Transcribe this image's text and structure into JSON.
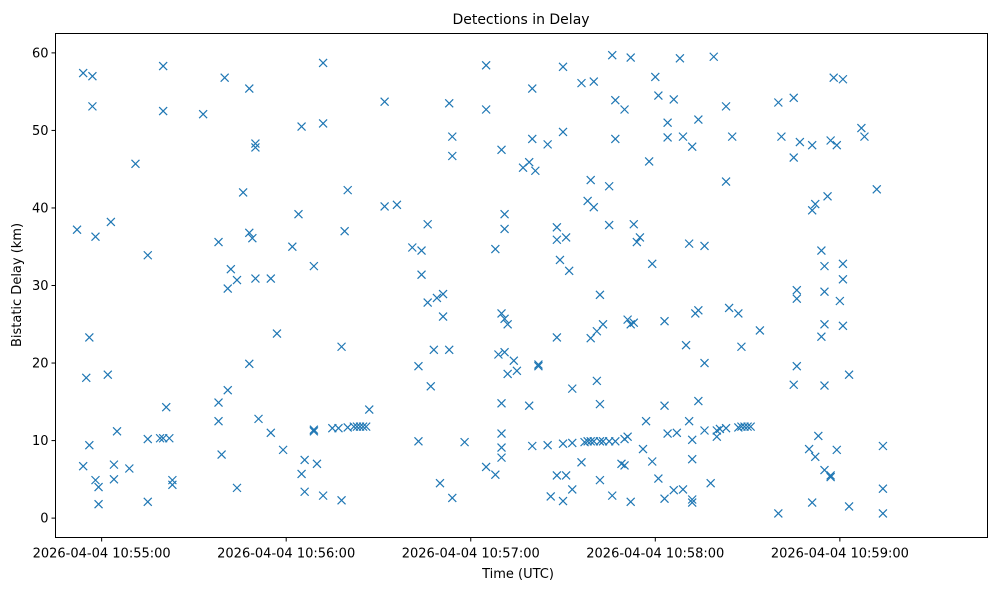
{
  "chart_data": {
    "type": "scatter",
    "title": "Detections in Delay",
    "xlabel": "Time (UTC)",
    "ylabel": "Bistatic Delay (km)",
    "xlim": [
      "2026-04-04 10:54:45",
      "2026-04-04 10:59:48"
    ],
    "ylim": [
      -2.5,
      62.5
    ],
    "x_ticks": [
      "2026-04-04 10:55:00",
      "2026-04-04 10:56:00",
      "2026-04-04 10:57:00",
      "2026-04-04 10:58:00",
      "2026-04-04 10:59:00"
    ],
    "y_ticks": [
      0,
      10,
      20,
      30,
      40,
      50,
      60
    ],
    "grid": false,
    "marker": "x",
    "color": "#1f77b4",
    "points": [
      [
        "2026-04-04 10:54:54",
        57.4
      ],
      [
        "2026-04-04 10:54:57",
        57.0
      ],
      [
        "2026-04-04 10:54:57",
        53.1
      ],
      [
        "2026-04-04 10:54:52",
        37.2
      ],
      [
        "2026-04-04 10:54:58",
        36.3
      ],
      [
        "2026-04-04 10:55:03",
        38.2
      ],
      [
        "2026-04-04 10:54:56",
        23.3
      ],
      [
        "2026-04-04 10:54:55",
        18.1
      ],
      [
        "2026-04-04 10:55:02",
        18.5
      ],
      [
        "2026-04-04 10:55:05",
        11.2
      ],
      [
        "2026-04-04 10:54:56",
        9.4
      ],
      [
        "2026-04-04 10:54:54",
        6.7
      ],
      [
        "2026-04-04 10:54:58",
        4.9
      ],
      [
        "2026-04-04 10:54:59",
        4.0
      ],
      [
        "2026-04-04 10:54:59",
        1.8
      ],
      [
        "2026-04-04 10:55:04",
        6.9
      ],
      [
        "2026-04-04 10:55:04",
        5.0
      ],
      [
        "2026-04-04 10:55:09",
        6.4
      ],
      [
        "2026-04-04 10:55:11",
        45.7
      ],
      [
        "2026-04-04 10:55:15",
        33.9
      ],
      [
        "2026-04-04 10:55:15",
        10.2
      ],
      [
        "2026-04-04 10:55:15",
        2.1
      ],
      [
        "2026-04-04 10:55:19",
        10.3
      ],
      [
        "2026-04-04 10:55:20",
        10.3
      ],
      [
        "2026-04-04 10:55:22",
        10.3
      ],
      [
        "2026-04-04 10:55:21",
        14.3
      ],
      [
        "2026-04-04 10:55:20",
        58.3
      ],
      [
        "2026-04-04 10:55:20",
        52.5
      ],
      [
        "2026-04-04 10:55:23",
        4.9
      ],
      [
        "2026-04-04 10:55:23",
        4.3
      ],
      [
        "2026-04-04 10:55:33",
        52.1
      ],
      [
        "2026-04-04 10:55:38",
        35.6
      ],
      [
        "2026-04-04 10:55:38",
        14.9
      ],
      [
        "2026-04-04 10:55:38",
        12.5
      ],
      [
        "2026-04-04 10:55:39",
        8.2
      ],
      [
        "2026-04-04 10:55:40",
        56.8
      ],
      [
        "2026-04-04 10:55:41",
        29.6
      ],
      [
        "2026-04-04 10:55:41",
        16.5
      ],
      [
        "2026-04-04 10:55:42",
        32.1
      ],
      [
        "2026-04-04 10:55:44",
        30.7
      ],
      [
        "2026-04-04 10:55:44",
        3.9
      ],
      [
        "2026-04-04 10:55:46",
        42.0
      ],
      [
        "2026-04-04 10:55:48",
        55.4
      ],
      [
        "2026-04-04 10:55:48",
        36.8
      ],
      [
        "2026-04-04 10:55:49",
        36.1
      ],
      [
        "2026-04-04 10:55:48",
        19.9
      ],
      [
        "2026-04-04 10:55:50",
        48.3
      ],
      [
        "2026-04-04 10:55:50",
        47.8
      ],
      [
        "2026-04-04 10:55:50",
        30.9
      ],
      [
        "2026-04-04 10:55:51",
        12.8
      ],
      [
        "2026-04-04 10:55:55",
        30.9
      ],
      [
        "2026-04-04 10:55:55",
        11.0
      ],
      [
        "2026-04-04 10:55:57",
        23.8
      ],
      [
        "2026-04-04 10:55:59",
        8.8
      ],
      [
        "2026-04-04 10:56:02",
        35.0
      ],
      [
        "2026-04-04 10:56:04",
        39.2
      ],
      [
        "2026-04-04 10:56:05",
        50.5
      ],
      [
        "2026-04-04 10:56:05",
        5.7
      ],
      [
        "2026-04-04 10:56:06",
        7.5
      ],
      [
        "2026-04-04 10:56:06",
        3.4
      ],
      [
        "2026-04-04 10:56:09",
        32.5
      ],
      [
        "2026-04-04 10:56:09",
        11.4
      ],
      [
        "2026-04-04 10:56:09",
        11.2
      ],
      [
        "2026-04-04 10:56:10",
        7.0
      ],
      [
        "2026-04-04 10:56:12",
        58.7
      ],
      [
        "2026-04-04 10:56:12",
        50.9
      ],
      [
        "2026-04-04 10:56:12",
        2.9
      ],
      [
        "2026-04-04 10:56:15",
        11.6
      ],
      [
        "2026-04-04 10:56:17",
        11.6
      ],
      [
        "2026-04-04 10:56:18",
        22.1
      ],
      [
        "2026-04-04 10:56:18",
        2.3
      ],
      [
        "2026-04-04 10:56:19",
        37.0
      ],
      [
        "2026-04-04 10:56:20",
        42.3
      ],
      [
        "2026-04-04 10:56:20",
        11.7
      ],
      [
        "2026-04-04 10:56:22",
        11.8
      ],
      [
        "2026-04-04 10:56:23",
        11.8
      ],
      [
        "2026-04-04 10:56:24",
        11.8
      ],
      [
        "2026-04-04 10:56:25",
        11.8
      ],
      [
        "2026-04-04 10:56:26",
        11.8
      ],
      [
        "2026-04-04 10:56:27",
        14.0
      ],
      [
        "2026-04-04 10:56:32",
        53.7
      ],
      [
        "2026-04-04 10:56:32",
        40.2
      ],
      [
        "2026-04-04 10:56:36",
        40.4
      ],
      [
        "2026-04-04 10:56:41",
        34.9
      ],
      [
        "2026-04-04 10:56:44",
        34.5
      ],
      [
        "2026-04-04 10:56:44",
        31.4
      ],
      [
        "2026-04-04 10:56:43",
        19.6
      ],
      [
        "2026-04-04 10:56:43",
        9.9
      ],
      [
        "2026-04-04 10:56:46",
        37.9
      ],
      [
        "2026-04-04 10:56:46",
        27.8
      ],
      [
        "2026-04-04 10:56:47",
        17.0
      ],
      [
        "2026-04-04 10:56:48",
        21.7
      ],
      [
        "2026-04-04 10:56:49",
        28.4
      ],
      [
        "2026-04-04 10:56:51",
        28.9
      ],
      [
        "2026-04-04 10:56:51",
        26.0
      ],
      [
        "2026-04-04 10:56:50",
        4.5
      ],
      [
        "2026-04-04 10:56:53",
        53.5
      ],
      [
        "2026-04-04 10:56:54",
        49.2
      ],
      [
        "2026-04-04 10:56:54",
        46.7
      ],
      [
        "2026-04-04 10:56:53",
        21.7
      ],
      [
        "2026-04-04 10:56:54",
        2.6
      ],
      [
        "2026-04-04 10:56:58",
        9.8
      ],
      [
        "2026-04-04 10:57:05",
        58.4
      ],
      [
        "2026-04-04 10:57:05",
        52.7
      ],
      [
        "2026-04-04 10:57:05",
        6.6
      ],
      [
        "2026-04-04 10:57:08",
        34.7
      ],
      [
        "2026-04-04 10:57:09",
        21.1
      ],
      [
        "2026-04-04 10:57:08",
        5.6
      ],
      [
        "2026-04-04 10:57:10",
        47.5
      ],
      [
        "2026-04-04 10:57:11",
        39.2
      ],
      [
        "2026-04-04 10:57:11",
        37.3
      ],
      [
        "2026-04-04 10:57:10",
        26.4
      ],
      [
        "2026-04-04 10:57:11",
        25.7
      ],
      [
        "2026-04-04 10:57:12",
        25.0
      ],
      [
        "2026-04-04 10:57:11",
        21.4
      ],
      [
        "2026-04-04 10:57:12",
        18.6
      ],
      [
        "2026-04-04 10:57:10",
        14.8
      ],
      [
        "2026-04-04 10:57:10",
        10.9
      ],
      [
        "2026-04-04 10:57:10",
        9.1
      ],
      [
        "2026-04-04 10:57:10",
        7.8
      ],
      [
        "2026-04-04 10:57:14",
        20.3
      ],
      [
        "2026-04-04 10:57:15",
        19.0
      ],
      [
        "2026-04-04 10:57:17",
        45.2
      ],
      [
        "2026-04-04 10:57:19",
        45.9
      ],
      [
        "2026-04-04 10:57:20",
        48.9
      ],
      [
        "2026-04-04 10:57:20",
        55.4
      ],
      [
        "2026-04-04 10:57:21",
        44.8
      ],
      [
        "2026-04-04 10:57:19",
        14.5
      ],
      [
        "2026-04-04 10:57:20",
        9.3
      ],
      [
        "2026-04-04 10:57:22",
        19.8
      ],
      [
        "2026-04-04 10:57:22",
        19.6
      ],
      [
        "2026-04-04 10:57:25",
        48.2
      ],
      [
        "2026-04-04 10:57:25",
        9.4
      ],
      [
        "2026-04-04 10:57:26",
        2.8
      ],
      [
        "2026-04-04 10:57:28",
        37.5
      ],
      [
        "2026-04-04 10:57:28",
        35.9
      ],
      [
        "2026-04-04 10:57:28",
        23.3
      ],
      [
        "2026-04-04 10:57:28",
        5.5
      ],
      [
        "2026-04-04 10:57:29",
        33.3
      ],
      [
        "2026-04-04 10:57:30",
        58.2
      ],
      [
        "2026-04-04 10:57:30",
        49.8
      ],
      [
        "2026-04-04 10:57:30",
        9.6
      ],
      [
        "2026-04-04 10:57:31",
        36.2
      ],
      [
        "2026-04-04 10:57:31",
        5.5
      ],
      [
        "2026-04-04 10:57:30",
        2.2
      ],
      [
        "2026-04-04 10:57:32",
        31.9
      ],
      [
        "2026-04-04 10:57:33",
        16.7
      ],
      [
        "2026-04-04 10:57:33",
        9.7
      ],
      [
        "2026-04-04 10:57:33",
        3.7
      ],
      [
        "2026-04-04 10:57:36",
        56.1
      ],
      [
        "2026-04-04 10:57:36",
        7.2
      ],
      [
        "2026-04-04 10:57:37",
        9.8
      ],
      [
        "2026-04-04 10:57:38",
        9.9
      ],
      [
        "2026-04-04 10:57:38",
        40.9
      ],
      [
        "2026-04-04 10:57:39",
        43.6
      ],
      [
        "2026-04-04 10:57:39",
        23.2
      ],
      [
        "2026-04-04 10:57:40",
        56.3
      ],
      [
        "2026-04-04 10:57:40",
        40.1
      ],
      [
        "2026-04-04 10:57:39",
        9.9
      ],
      [
        "2026-04-04 10:57:40",
        9.9
      ],
      [
        "2026-04-04 10:57:41",
        24.1
      ],
      [
        "2026-04-04 10:57:41",
        17.7
      ],
      [
        "2026-04-04 10:57:42",
        28.8
      ],
      [
        "2026-04-04 10:57:42",
        14.7
      ],
      [
        "2026-04-04 10:57:42",
        4.9
      ],
      [
        "2026-04-04 10:57:42",
        9.9
      ],
      [
        "2026-04-04 10:57:43",
        25.0
      ],
      [
        "2026-04-04 10:57:43",
        9.9
      ],
      [
        "2026-04-04 10:57:45",
        42.8
      ],
      [
        "2026-04-04 10:57:45",
        37.8
      ],
      [
        "2026-04-04 10:57:45",
        9.9
      ],
      [
        "2026-04-04 10:57:46",
        2.9
      ],
      [
        "2026-04-04 10:57:46",
        59.7
      ],
      [
        "2026-04-04 10:57:47",
        53.9
      ],
      [
        "2026-04-04 10:57:47",
        48.9
      ],
      [
        "2026-04-04 10:57:47",
        9.9
      ],
      [
        "2026-04-04 10:57:49",
        7.0
      ],
      [
        "2026-04-04 10:57:50",
        52.7
      ],
      [
        "2026-04-04 10:57:50",
        10.2
      ],
      [
        "2026-04-04 10:57:50",
        6.8
      ],
      [
        "2026-04-04 10:57:51",
        10.5
      ],
      [
        "2026-04-04 10:57:51",
        25.6
      ],
      [
        "2026-04-04 10:57:52",
        25.0
      ],
      [
        "2026-04-04 10:57:52",
        59.4
      ],
      [
        "2026-04-04 10:57:52",
        2.1
      ],
      [
        "2026-04-04 10:57:53",
        37.9
      ],
      [
        "2026-04-04 10:57:53",
        25.2
      ],
      [
        "2026-04-04 10:57:54",
        35.6
      ],
      [
        "2026-04-04 10:57:55",
        36.2
      ],
      [
        "2026-04-04 10:57:56",
        8.9
      ],
      [
        "2026-04-04 10:57:58",
        46.0
      ],
      [
        "2026-04-04 10:57:57",
        12.5
      ],
      [
        "2026-04-04 10:57:59",
        32.8
      ],
      [
        "2026-04-04 10:58:00",
        56.9
      ],
      [
        "2026-04-04 10:58:01",
        54.5
      ],
      [
        "2026-04-04 10:57:59",
        7.3
      ],
      [
        "2026-04-04 10:58:01",
        5.1
      ],
      [
        "2026-04-04 10:58:03",
        14.5
      ],
      [
        "2026-04-04 10:58:03",
        25.4
      ],
      [
        "2026-04-04 10:58:04",
        49.1
      ],
      [
        "2026-04-04 10:58:04",
        51.0
      ],
      [
        "2026-04-04 10:58:03",
        2.5
      ],
      [
        "2026-04-04 10:58:04",
        10.9
      ],
      [
        "2026-04-04 10:58:06",
        54.0
      ],
      [
        "2026-04-04 10:58:06",
        3.6
      ],
      [
        "2026-04-04 10:58:07",
        11.0
      ],
      [
        "2026-04-04 10:58:08",
        59.3
      ],
      [
        "2026-04-04 10:58:09",
        49.2
      ],
      [
        "2026-04-04 10:58:09",
        3.7
      ],
      [
        "2026-04-04 10:58:10",
        22.3
      ],
      [
        "2026-04-04 10:58:11",
        35.4
      ],
      [
        "2026-04-04 10:58:12",
        47.9
      ],
      [
        "2026-04-04 10:58:12",
        10.1
      ],
      [
        "2026-04-04 10:58:11",
        12.5
      ],
      [
        "2026-04-04 10:58:12",
        7.6
      ],
      [
        "2026-04-04 10:58:12",
        2.4
      ],
      [
        "2026-04-04 10:58:12",
        2.0
      ],
      [
        "2026-04-04 10:58:13",
        26.4
      ],
      [
        "2026-04-04 10:58:14",
        26.8
      ],
      [
        "2026-04-04 10:58:14",
        51.4
      ],
      [
        "2026-04-04 10:58:14",
        15.1
      ],
      [
        "2026-04-04 10:58:16",
        35.1
      ],
      [
        "2026-04-04 10:58:16",
        11.3
      ],
      [
        "2026-04-04 10:58:16",
        20.0
      ],
      [
        "2026-04-04 10:58:18",
        4.5
      ],
      [
        "2026-04-04 10:58:19",
        59.5
      ],
      [
        "2026-04-04 10:58:20",
        10.5
      ],
      [
        "2026-04-04 10:58:20",
        11.3
      ],
      [
        "2026-04-04 10:58:21",
        11.5
      ],
      [
        "2026-04-04 10:58:23",
        43.4
      ],
      [
        "2026-04-04 10:58:23",
        53.1
      ],
      [
        "2026-04-04 10:58:23",
        11.6
      ],
      [
        "2026-04-04 10:58:24",
        27.1
      ],
      [
        "2026-04-04 10:58:25",
        49.2
      ],
      [
        "2026-04-04 10:58:27",
        26.4
      ],
      [
        "2026-04-04 10:58:28",
        22.1
      ],
      [
        "2026-04-04 10:58:27",
        11.7
      ],
      [
        "2026-04-04 10:58:28",
        11.8
      ],
      [
        "2026-04-04 10:58:29",
        11.8
      ],
      [
        "2026-04-04 10:58:30",
        11.8
      ],
      [
        "2026-04-04 10:58:31",
        11.8
      ],
      [
        "2026-04-04 10:58:34",
        24.2
      ],
      [
        "2026-04-04 10:58:40",
        53.6
      ],
      [
        "2026-04-04 10:58:41",
        49.2
      ],
      [
        "2026-04-04 10:58:40",
        0.6
      ],
      [
        "2026-04-04 10:58:45",
        54.2
      ],
      [
        "2026-04-04 10:58:45",
        46.5
      ],
      [
        "2026-04-04 10:58:46",
        29.4
      ],
      [
        "2026-04-04 10:58:46",
        28.3
      ],
      [
        "2026-04-04 10:58:46",
        19.6
      ],
      [
        "2026-04-04 10:58:45",
        17.2
      ],
      [
        "2026-04-04 10:58:47",
        48.5
      ],
      [
        "2026-04-04 10:58:51",
        48.1
      ],
      [
        "2026-04-04 10:58:51",
        39.7
      ],
      [
        "2026-04-04 10:58:52",
        40.5
      ],
      [
        "2026-04-04 10:58:50",
        8.9
      ],
      [
        "2026-04-04 10:58:51",
        2.0
      ],
      [
        "2026-04-04 10:58:52",
        7.9
      ],
      [
        "2026-04-04 10:58:53",
        10.6
      ],
      [
        "2026-04-04 10:58:54",
        34.5
      ],
      [
        "2026-04-04 10:58:55",
        32.5
      ],
      [
        "2026-04-04 10:58:55",
        29.2
      ],
      [
        "2026-04-04 10:58:55",
        25.0
      ],
      [
        "2026-04-04 10:58:54",
        23.4
      ],
      [
        "2026-04-04 10:58:55",
        17.1
      ],
      [
        "2026-04-04 10:58:55",
        6.2
      ],
      [
        "2026-04-04 10:58:56",
        41.5
      ],
      [
        "2026-04-04 10:58:57",
        48.7
      ],
      [
        "2026-04-04 10:58:57",
        5.3
      ],
      [
        "2026-04-04 10:58:57",
        5.5
      ],
      [
        "2026-04-04 10:58:58",
        56.8
      ],
      [
        "2026-04-04 10:58:59",
        48.1
      ],
      [
        "2026-04-04 10:58:59",
        8.8
      ],
      [
        "2026-04-04 10:59:00",
        28.0
      ],
      [
        "2026-04-04 10:59:01",
        30.8
      ],
      [
        "2026-04-04 10:59:01",
        32.8
      ],
      [
        "2026-04-04 10:59:01",
        24.8
      ],
      [
        "2026-04-04 10:59:01",
        56.6
      ],
      [
        "2026-04-04 10:59:03",
        18.5
      ],
      [
        "2026-04-04 10:59:03",
        1.5
      ],
      [
        "2026-04-04 10:59:07",
        50.3
      ],
      [
        "2026-04-04 10:59:08",
        49.2
      ],
      [
        "2026-04-04 10:59:12",
        42.4
      ],
      [
        "2026-04-04 10:59:14",
        9.3
      ],
      [
        "2026-04-04 10:59:14",
        3.8
      ],
      [
        "2026-04-04 10:59:14",
        0.6
      ]
    ]
  }
}
